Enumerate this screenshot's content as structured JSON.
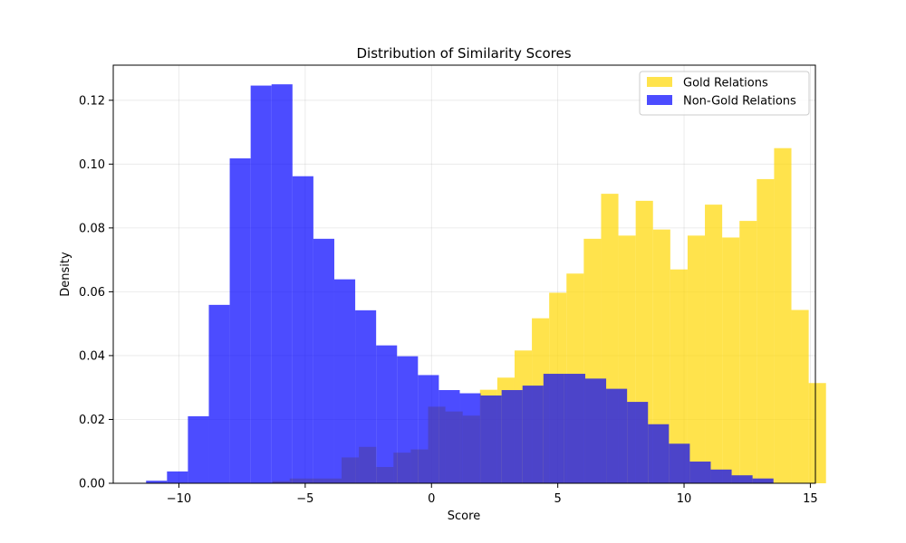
{
  "chart_data": {
    "type": "bar",
    "title": "Distribution of Similarity Scores",
    "xlabel": "Score",
    "ylabel": "Density",
    "xlim": [
      -12.6,
      15.2
    ],
    "ylim": [
      0,
      0.131
    ],
    "xticks": [
      -10,
      -5,
      0,
      5,
      10,
      15
    ],
    "xtick_labels": [
      "−10",
      "−5",
      "0",
      "5",
      "10",
      "15"
    ],
    "yticks": [
      0.0,
      0.02,
      0.04,
      0.06,
      0.08,
      0.1,
      0.12
    ],
    "ytick_labels": [
      "0.00",
      "0.02",
      "0.04",
      "0.06",
      "0.08",
      "0.10",
      "0.12"
    ],
    "grid": true,
    "legend_position": "top-right",
    "series": [
      {
        "name": "Gold Relations",
        "color": "#FFD700",
        "opacity": 0.7,
        "bin_start": -6.3,
        "bin_width": 0.685,
        "values": [
          0.0007,
          0.0015,
          0.0015,
          0.0015,
          0.0081,
          0.0114,
          0.0051,
          0.0096,
          0.0106,
          0.024,
          0.0225,
          0.0212,
          0.0293,
          0.0331,
          0.0416,
          0.0517,
          0.0597,
          0.0657,
          0.0766,
          0.0907,
          0.0776,
          0.0885,
          0.0795,
          0.067,
          0.0776,
          0.0873,
          0.077,
          0.0822,
          0.0953,
          0.105,
          0.0543,
          0.0314
        ]
      },
      {
        "name": "Non-Gold Relations",
        "color": "#0000FF",
        "opacity": 0.7,
        "bin_start": -11.3,
        "bin_width": 0.828,
        "values": [
          0.0008,
          0.0037,
          0.021,
          0.0559,
          0.1018,
          0.1246,
          0.125,
          0.0962,
          0.0766,
          0.0639,
          0.0542,
          0.0432,
          0.0398,
          0.0339,
          0.0292,
          0.0282,
          0.0275,
          0.0292,
          0.0306,
          0.0343,
          0.0343,
          0.0328,
          0.0296,
          0.0255,
          0.0185,
          0.0124,
          0.0068,
          0.0043,
          0.0025,
          0.0015
        ]
      }
    ]
  }
}
